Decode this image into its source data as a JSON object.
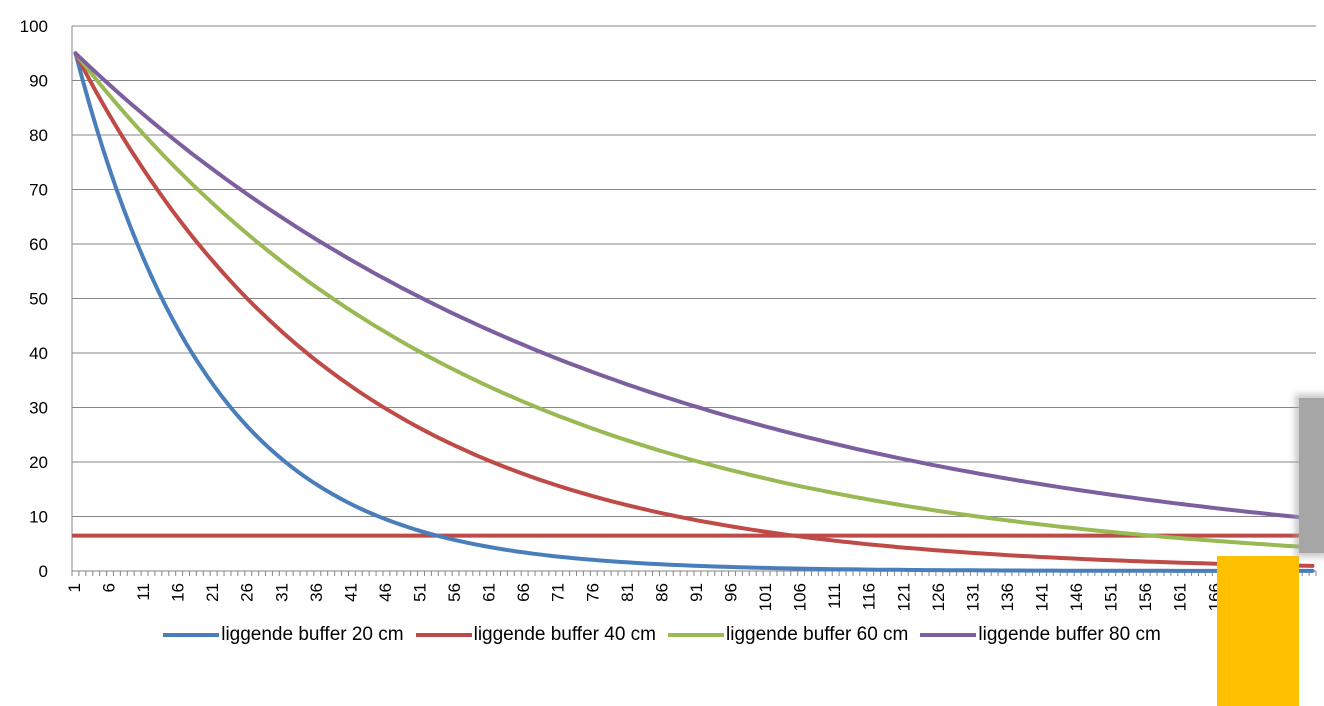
{
  "chart_data": {
    "type": "line",
    "title": "",
    "xlabel": "",
    "ylabel": "",
    "x_start": 1,
    "x_end": 180,
    "x_tick_step": 5,
    "ylim": [
      0,
      100
    ],
    "y_ticks": [
      0,
      10,
      20,
      30,
      40,
      50,
      60,
      70,
      80,
      90,
      100
    ],
    "grid": "horizontal",
    "legend_position": "bottom",
    "series": [
      {
        "name": "liggende buffer 20 cm",
        "color": "#4A7EBB",
        "start_value": 95,
        "decay_per_step": 0.95
      },
      {
        "name": "liggende buffer 40 cm",
        "color": "#BE4B48",
        "start_value": 95,
        "decay_per_step": 0.9745
      },
      {
        "name": "liggende buffer 60 cm",
        "color": "#98B954",
        "start_value": 95,
        "decay_per_step": 0.9829
      },
      {
        "name": "liggende buffer 80 cm",
        "color": "#7D5FA0",
        "start_value": 95,
        "decay_per_step": 0.9873
      }
    ],
    "reference_lines": [
      {
        "y": 6.5,
        "color": "#BE4B48"
      }
    ]
  },
  "overlays": {
    "highlight_color": "#FFC000",
    "gray_block_color": "#A6A6A6"
  }
}
